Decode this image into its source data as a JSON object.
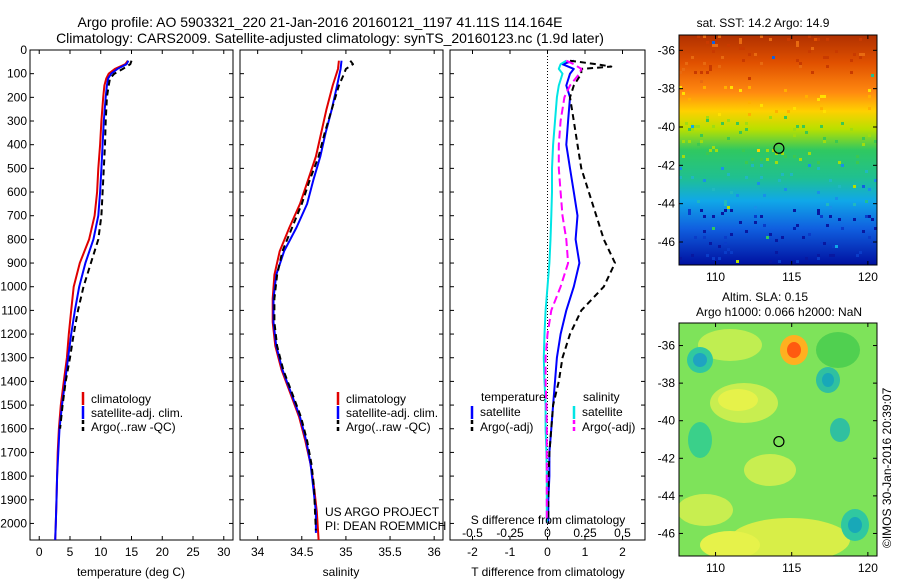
{
  "title_line1": "Argo profile: AO 5903321_220 21-Jan-2016 20160121_1197 41.11S 114.164E",
  "title_line2": "Climatology: CARS2009. Satellite-adjusted climatology: synTS_20160123.nc (1.9d later)",
  "sst_title": "sat. SST: 14.2 Argo: 14.9",
  "sla_title_1": "Altim. SLA: 0.15",
  "sla_title_2": "Argo h1000: 0.066 h2000: NaN",
  "project_line1": "US ARGO PROJECT",
  "project_line2": "PI: DEAN ROEMMICH",
  "side_stamp": "©IMOS 30-Jan-2016 20:39:07",
  "legend1": [
    "climatology",
    "satellite-adj. clim.",
    "Argo(..raw -QC)"
  ],
  "legend2": [
    "climatology",
    "satellite-adj. clim.",
    "Argo(..raw -QC)"
  ],
  "legend3": {
    "col1_head": "temperature",
    "col2_head": "salinity",
    "col1": [
      "satellite",
      "Argo(-adj)"
    ],
    "col2": [
      "satellite",
      "Argo(-adj)"
    ]
  },
  "diff_top_label": "S difference from climatology",
  "colors": {
    "climatology": "#e00000",
    "satellite": "#0000ff",
    "argo": "#000000",
    "sal_satellite": "#00e5e5",
    "sal_argo": "#ff00ff"
  },
  "chart_data": [
    {
      "type": "line",
      "xlabel": "temperature (deg C)",
      "xlim": [
        -1.5,
        31.5
      ],
      "xticks": [
        0,
        5,
        10,
        15,
        20,
        25,
        30
      ],
      "ylim": [
        2070,
        0
      ],
      "yticks": [
        0,
        100,
        200,
        300,
        400,
        500,
        600,
        700,
        800,
        900,
        1000,
        1100,
        1200,
        1300,
        1400,
        1500,
        1600,
        1700,
        1800,
        1900,
        2000
      ],
      "series": [
        {
          "name": "climatology",
          "color": "#e00000",
          "dash": "",
          "depth": [
            45,
            60,
            80,
            100,
            120,
            150,
            200,
            300,
            400,
            500,
            600,
            700,
            800,
            900,
            1000,
            1100,
            1200,
            1300,
            1400,
            1500,
            1600,
            1700,
            1800,
            1900,
            2000,
            2070
          ],
          "values": [
            14.4,
            14.0,
            12.3,
            11.3,
            10.9,
            10.6,
            10.4,
            10.1,
            9.9,
            9.6,
            9.4,
            9.0,
            8.1,
            6.6,
            5.6,
            5.2,
            4.8,
            4.5,
            4.0,
            3.5,
            3.2,
            3.0,
            2.9,
            2.8,
            2.7,
            2.6
          ]
        },
        {
          "name": "satellite-adj. clim.",
          "color": "#0000ff",
          "dash": "",
          "depth": [
            45,
            60,
            80,
            100,
            120,
            150,
            200,
            300,
            400,
            500,
            600,
            700,
            800,
            900,
            1000,
            1100,
            1200,
            1300,
            1400,
            1500,
            1600,
            1700,
            1800,
            1900,
            2000,
            2070
          ],
          "values": [
            14.5,
            14.2,
            12.7,
            11.7,
            11.2,
            11.0,
            10.8,
            10.5,
            10.3,
            10.1,
            9.9,
            9.6,
            8.8,
            7.5,
            6.5,
            5.8,
            5.2,
            4.7,
            4.2,
            3.7,
            3.3,
            3.1,
            2.9,
            2.8,
            2.7,
            2.6
          ]
        },
        {
          "name": "Argo(..raw -QC)",
          "color": "#000000",
          "dash": "6,4",
          "depth": [
            45,
            60,
            80,
            100,
            120,
            150,
            200,
            300,
            400,
            500,
            600,
            700,
            800,
            900,
            1000,
            1100,
            1200,
            1300,
            1400,
            1500,
            1600
          ],
          "values": [
            15.0,
            14.8,
            13.6,
            12.2,
            11.5,
            11.3,
            11.0,
            10.8,
            10.7,
            10.5,
            10.3,
            10.1,
            9.6,
            8.4,
            7.2,
            6.3,
            5.6,
            5.0,
            4.3,
            3.8,
            3.4
          ]
        }
      ]
    },
    {
      "type": "line",
      "xlabel": "salinity",
      "xlim": [
        33.8,
        36.1
      ],
      "xticks": [
        34,
        34.5,
        35,
        35.5,
        36
      ],
      "ylim": [
        2070,
        0
      ],
      "series": [
        {
          "name": "climatology",
          "color": "#e00000",
          "dash": "",
          "depth": [
            45,
            80,
            150,
            250,
            350,
            450,
            550,
            650,
            750,
            850,
            950,
            1050,
            1150,
            1250,
            1350,
            1450,
            1550,
            1650,
            1750,
            1850,
            1950,
            2070
          ],
          "values": [
            34.92,
            34.91,
            34.85,
            34.78,
            34.72,
            34.66,
            34.57,
            34.48,
            34.36,
            34.25,
            34.19,
            34.17,
            34.17,
            34.2,
            34.27,
            34.37,
            34.47,
            34.54,
            34.6,
            34.64,
            34.67,
            34.69
          ]
        },
        {
          "name": "satellite-adj. clim.",
          "color": "#0000ff",
          "dash": "",
          "depth": [
            45,
            80,
            150,
            250,
            350,
            450,
            550,
            650,
            750,
            850,
            950,
            1050,
            1150,
            1250,
            1350,
            1450,
            1550,
            1650,
            1750,
            1850,
            1950,
            2040
          ],
          "values": [
            34.95,
            34.94,
            34.9,
            34.84,
            34.77,
            34.71,
            34.63,
            34.56,
            34.44,
            34.3,
            34.21,
            34.18,
            34.18,
            34.21,
            34.28,
            34.38,
            34.48,
            34.55,
            34.6,
            34.63,
            34.66,
            34.66
          ]
        },
        {
          "name": "Argo(..raw -QC)",
          "color": "#000000",
          "dash": "6,4",
          "depth": [
            45,
            60,
            80,
            100,
            150,
            250,
            350,
            450,
            550,
            650,
            750,
            850,
            950,
            1050,
            1150,
            1250,
            1350,
            1450,
            1550,
            1650,
            1750,
            1850,
            1950,
            2030
          ],
          "values": [
            35.05,
            35.08,
            35.0,
            34.98,
            34.92,
            34.84,
            34.76,
            34.69,
            34.59,
            34.5,
            34.39,
            34.28,
            34.22,
            34.19,
            34.19,
            34.22,
            34.29,
            34.39,
            34.49,
            34.56,
            34.61,
            34.64,
            34.65,
            34.66
          ]
        }
      ]
    },
    {
      "type": "line",
      "xlabel": "T difference from climatology",
      "xlim": [
        -2.6,
        2.6
      ],
      "xticks": [
        -2,
        -1,
        0,
        1,
        2
      ],
      "top_label": "S difference from climatology",
      "top_ticks": [
        -0.5,
        -0.25,
        0,
        0.25,
        0.5
      ],
      "ylim": [
        2070,
        0
      ],
      "series": [
        {
          "name": "satellite",
          "color": "#0000ff",
          "dash": "",
          "depth": [
            45,
            60,
            80,
            100,
            150,
            200,
            300,
            400,
            500,
            600,
            700,
            800,
            900,
            1000,
            1100,
            1200,
            1300,
            1400,
            1500,
            1600,
            1700,
            1800,
            1900,
            2000
          ],
          "values": [
            0.7,
            0.4,
            0.7,
            0.6,
            0.5,
            0.6,
            0.55,
            0.5,
            0.6,
            0.7,
            0.8,
            0.75,
            0.85,
            0.7,
            0.5,
            0.35,
            0.25,
            0.2,
            0.15,
            0.1,
            0.05,
            0.05,
            0.02,
            0.02
          ]
        },
        {
          "name": "Argo(-adj)",
          "color": "#000000",
          "dash": "6,4",
          "depth": [
            45,
            60,
            70,
            80,
            100,
            150,
            200,
            300,
            400,
            500,
            600,
            700,
            800,
            900,
            1000,
            1100,
            1200,
            1300,
            1400,
            1500,
            1600,
            1700,
            1800,
            1900,
            2000
          ],
          "values": [
            0.6,
            1.3,
            1.7,
            0.9,
            0.9,
            0.7,
            0.6,
            0.7,
            0.8,
            0.9,
            1.1,
            1.3,
            1.5,
            1.8,
            1.5,
            0.9,
            0.6,
            0.4,
            0.3,
            0.15,
            0.1,
            0.05,
            0.03,
            0.02,
            0.02
          ]
        },
        {
          "name": "satellite",
          "color": "#00e5e5",
          "dash": "",
          "depth": [
            45,
            60,
            80,
            100,
            150,
            200,
            300,
            400,
            500,
            600,
            700,
            800,
            900,
            1000,
            1100,
            1200,
            1300,
            1400,
            1500,
            1600,
            1700,
            1800,
            1900,
            2000
          ],
          "values": [
            0.5,
            0.35,
            0.3,
            0.4,
            0.3,
            0.25,
            0.2,
            0.15,
            0.12,
            0.12,
            0.1,
            0.08,
            0.05,
            0.0,
            -0.05,
            -0.08,
            -0.1,
            -0.08,
            -0.05,
            -0.05,
            -0.03,
            -0.02,
            -0.02,
            -0.02
          ]
        },
        {
          "name": "Argo(-adj)",
          "color": "#ff00ff",
          "dash": "8,4",
          "depth": [
            45,
            60,
            80,
            100,
            150,
            200,
            300,
            400,
            500,
            600,
            700,
            800,
            900,
            1000,
            1100,
            1200,
            1300,
            1400,
            1500,
            1600,
            1700,
            1800,
            1900,
            2000
          ],
          "values": [
            0.5,
            0.7,
            0.9,
            0.85,
            0.6,
            0.45,
            0.35,
            0.3,
            0.3,
            0.35,
            0.4,
            0.5,
            0.55,
            0.35,
            0.1,
            0.0,
            -0.05,
            -0.05,
            -0.03,
            -0.02,
            -0.02,
            -0.02,
            -0.02,
            -0.02
          ]
        }
      ]
    }
  ],
  "maps": [
    {
      "name": "sat-sst-map",
      "xticks": [
        110,
        115,
        120
      ],
      "yticks": [
        -36,
        -38,
        -40,
        -42,
        -44,
        -46
      ],
      "xlim": [
        107.6,
        120.6
      ],
      "ylim": [
        -35.2,
        -47.2
      ],
      "marker": [
        114.16,
        -41.11
      ]
    },
    {
      "name": "altim-sla-map",
      "xticks": [
        110,
        115,
        120
      ],
      "yticks": [
        -36,
        -38,
        -40,
        -42,
        -44,
        -46
      ],
      "xlim": [
        107.6,
        120.6
      ],
      "ylim": [
        -34.8,
        -47.2
      ],
      "marker": [
        114.16,
        -41.11
      ]
    }
  ]
}
